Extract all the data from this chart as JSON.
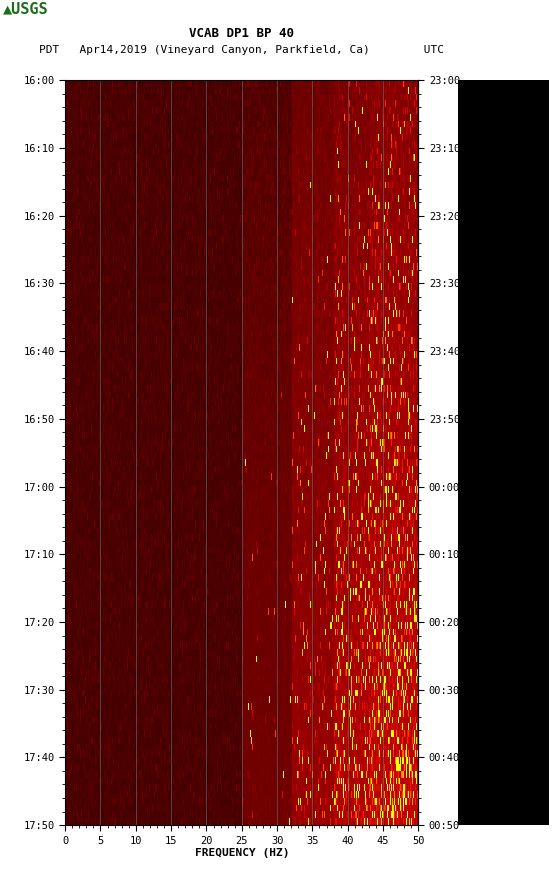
{
  "title_line1": "VCAB DP1 BP 40",
  "title_line2": "PDT   Apr14,2019 (Vineyard Canyon, Parkfield, Ca)        UTC",
  "xlabel": "FREQUENCY (HZ)",
  "freq_min": 0,
  "freq_max": 50,
  "left_yticks_labels": [
    "16:00",
    "16:10",
    "16:20",
    "16:30",
    "16:40",
    "16:50",
    "17:00",
    "17:10",
    "17:20",
    "17:30",
    "17:40",
    "17:50"
  ],
  "right_yticks_labels": [
    "23:00",
    "23:10",
    "23:20",
    "23:30",
    "23:40",
    "23:50",
    "00:00",
    "00:10",
    "00:20",
    "00:30",
    "00:40",
    "00:50"
  ],
  "freq_ticks": [
    0,
    5,
    10,
    15,
    20,
    25,
    30,
    35,
    40,
    45,
    50
  ],
  "vertical_lines_freq": [
    5,
    10,
    15,
    20,
    25,
    30,
    35,
    40,
    45
  ],
  "bg_color": "#ffffff",
  "usgs_green": "#1a6e1a",
  "fig_width": 5.52,
  "fig_height": 8.92,
  "dpi": 100
}
